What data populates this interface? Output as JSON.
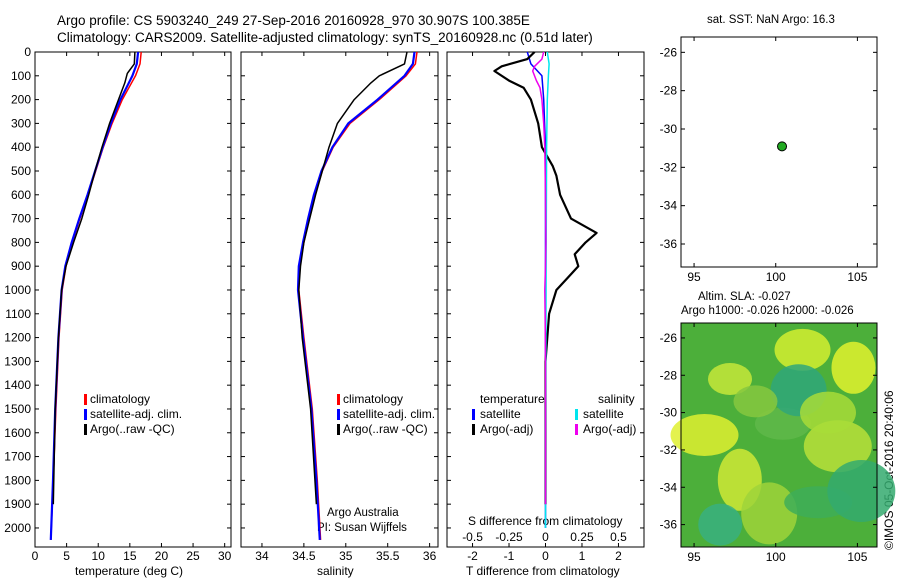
{
  "header": {
    "line1": "Argo profile: CS 5903240_249 27-Sep-2016 20160928_970 30.907S 100.385E",
    "line2": "Climatology: CARS2009. Satellite-adjusted climatology: synTS_20160928.nc (0.51d later)"
  },
  "side_note": "©IMOS 05-Oct-2016 20:40:06",
  "colors": {
    "climatology": "#ff0000",
    "satellite": "#0000ff",
    "argo": "#000000",
    "salinity_satellite": "#00e5ee",
    "salinity_argo": "#ee00ee",
    "map_dot": "#22aa22"
  },
  "chart_data": [
    {
      "id": "temperature",
      "type": "line",
      "xlabel": "temperature (deg C)",
      "ylabel": "",
      "xlim": [
        0,
        31
      ],
      "ylim": [
        2080,
        0
      ],
      "xticks": [
        0,
        5,
        10,
        15,
        20,
        25,
        30
      ],
      "yticks": [
        0,
        100,
        200,
        300,
        400,
        500,
        600,
        700,
        800,
        900,
        1000,
        1100,
        1200,
        1300,
        1400,
        1500,
        1600,
        1700,
        1800,
        1900,
        2000
      ],
      "legend": [
        "climatology",
        "satellite-adj. clim.",
        "Argo(..raw -QC)"
      ],
      "series": [
        {
          "name": "climatology",
          "color": "#ff0000",
          "depth": [
            0,
            50,
            100,
            200,
            300,
            400,
            500,
            600,
            700,
            800,
            900,
            1000,
            1200,
            1500,
            1800,
            2050
          ],
          "values": [
            16.8,
            16.6,
            15.9,
            13.8,
            12.2,
            10.8,
            9.6,
            8.4,
            7.1,
            5.9,
            4.9,
            4.3,
            3.8,
            3.3,
            2.9,
            2.5
          ]
        },
        {
          "name": "satellite-adj. clim.",
          "color": "#0000ff",
          "depth": [
            0,
            50,
            100,
            200,
            300,
            400,
            500,
            600,
            700,
            800,
            900,
            1000,
            1200,
            1500,
            1800,
            2050
          ],
          "values": [
            16.3,
            16.1,
            15.4,
            13.5,
            12.0,
            10.7,
            9.5,
            8.3,
            7.0,
            5.8,
            4.8,
            4.2,
            3.7,
            3.2,
            2.85,
            2.5
          ]
        },
        {
          "name": "Argo(..raw -QC)",
          "color": "#000000",
          "depth": [
            0,
            50,
            90,
            130,
            200,
            300,
            400,
            500,
            600,
            700,
            800,
            900,
            1000,
            1200,
            1500,
            1900
          ],
          "values": [
            15.8,
            15.7,
            14.6,
            14.2,
            13.2,
            11.8,
            10.6,
            9.5,
            8.5,
            7.4,
            6.1,
            4.9,
            4.2,
            3.7,
            3.2,
            2.9
          ]
        }
      ]
    },
    {
      "id": "salinity",
      "type": "line",
      "xlabel": "salinity",
      "ylabel": "",
      "xlim": [
        33.75,
        36.1
      ],
      "ylim": [
        2080,
        0
      ],
      "xticks": [
        34,
        34.5,
        35,
        35.5,
        36
      ],
      "legend": [
        "climatology",
        "satellite-adj. clim.",
        "Argo(..raw -QC)"
      ],
      "credit1": "Argo Australia",
      "credit2": "PI: Susan Wijffels",
      "series": [
        {
          "name": "climatology",
          "color": "#ff0000",
          "depth": [
            0,
            50,
            100,
            200,
            300,
            400,
            500,
            600,
            700,
            800,
            900,
            1000,
            1200,
            1500,
            1800,
            2050
          ],
          "values": [
            35.85,
            35.83,
            35.72,
            35.4,
            35.05,
            34.85,
            34.72,
            34.63,
            34.56,
            34.5,
            34.45,
            34.44,
            34.5,
            34.6,
            34.66,
            34.7
          ]
        },
        {
          "name": "satellite-adj. clim.",
          "color": "#0000ff",
          "depth": [
            0,
            50,
            100,
            200,
            300,
            400,
            500,
            600,
            700,
            800,
            900,
            1000,
            1200,
            1500,
            1800,
            2050
          ],
          "values": [
            35.82,
            35.8,
            35.7,
            35.38,
            35.03,
            34.84,
            34.71,
            34.62,
            34.55,
            34.49,
            34.44,
            34.43,
            34.49,
            34.59,
            34.65,
            34.69
          ]
        },
        {
          "name": "Argo(..raw -QC)",
          "color": "#000000",
          "depth": [
            0,
            50,
            100,
            130,
            200,
            300,
            400,
            500,
            600,
            700,
            800,
            900,
            1000,
            1200,
            1500,
            1900
          ],
          "values": [
            35.73,
            35.7,
            35.4,
            35.3,
            35.1,
            34.9,
            34.8,
            34.72,
            34.64,
            34.57,
            34.5,
            34.46,
            34.44,
            34.48,
            34.58,
            34.65
          ]
        }
      ]
    },
    {
      "id": "difference",
      "type": "line",
      "xlabel": "T difference from climatology",
      "top_label": "S difference from climatology",
      "xlim": [
        -2.7,
        2.7
      ],
      "ylim": [
        2080,
        0
      ],
      "xticks": [
        -2,
        -1,
        0,
        1,
        2
      ],
      "xticks_s": [
        -0.5,
        -0.25,
        0,
        0.25,
        0.5
      ],
      "legend_temperature_title": "temperature",
      "legend_salinity_title": "salinity",
      "legend_temperature": [
        "satellite",
        "Argo(-adj)"
      ],
      "legend_salinity": [
        "satellite",
        "Argo(-adj)"
      ],
      "series": [
        {
          "name": "temperature satellite",
          "color": "#0000ff",
          "depth": [
            0,
            50,
            100,
            200,
            400,
            800,
            1200,
            1600,
            2000
          ],
          "values": [
            -0.5,
            -0.4,
            -0.1,
            -0.05,
            0,
            0,
            0,
            0,
            0
          ]
        },
        {
          "name": "temperature Argo(-adj)",
          "color": "#000000",
          "depth": [
            0,
            30,
            60,
            80,
            120,
            150,
            200,
            300,
            400,
            480,
            520,
            600,
            700,
            760,
            800,
            850,
            900,
            950,
            1000,
            1100,
            1300,
            1600,
            1900
          ],
          "values": [
            -0.3,
            -0.5,
            -1.2,
            -1.4,
            -1.0,
            -0.6,
            -0.4,
            -0.2,
            -0.1,
            0.2,
            0.3,
            0.4,
            0.7,
            1.4,
            1.1,
            0.8,
            0.9,
            0.6,
            0.3,
            0.1,
            0,
            0,
            0
          ]
        },
        {
          "name": "salinity satellite",
          "color": "#00e5ee",
          "depth": [
            0,
            50,
            100,
            200,
            400,
            800,
            1200,
            1600,
            2000
          ],
          "values": [
            0.05,
            0.1,
            0.08,
            0.05,
            0.03,
            0.02,
            0.01,
            0.0,
            0.0
          ]
        },
        {
          "name": "salinity Argo(-adj)",
          "color": "#ee00ee",
          "depth": [
            0,
            30,
            60,
            80,
            120,
            150,
            200,
            300,
            400,
            600,
            800,
            900,
            1000,
            1100,
            1300,
            1600,
            1900
          ],
          "values": [
            -0.05,
            -0.1,
            -0.3,
            -0.35,
            -0.25,
            -0.15,
            -0.1,
            -0.05,
            -0.02,
            0,
            0.01,
            0,
            -0.02,
            -0.01,
            0,
            0,
            0
          ]
        }
      ]
    },
    {
      "id": "sst_map",
      "type": "scatter",
      "title": "sat. SST: NaN Argo: 16.3",
      "xlim": [
        94.2,
        106.2
      ],
      "ylim": [
        -37.2,
        -25.2
      ],
      "xticks": [
        95,
        100,
        105
      ],
      "yticks": [
        -26,
        -28,
        -30,
        -32,
        -34,
        -36
      ],
      "points": [
        {
          "x": 100.385,
          "y": -30.907
        }
      ]
    },
    {
      "id": "sla_map",
      "type": "heatmap",
      "title1": "Altim. SLA: -0.027",
      "title2": "Argo h1000: -0.026 h2000: -0.026",
      "xlim": [
        94.2,
        106.2
      ],
      "ylim": [
        -37.2,
        -25.2
      ],
      "xticks": [
        95,
        100,
        105
      ],
      "yticks": [
        -26,
        -28,
        -30,
        -32,
        -34,
        -36
      ]
    }
  ]
}
